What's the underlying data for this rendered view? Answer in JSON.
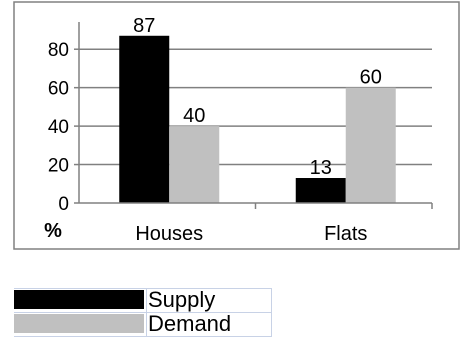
{
  "chart_data": {
    "type": "bar",
    "categories": [
      "Houses",
      "Flats"
    ],
    "series": [
      {
        "name": "Supply",
        "values": [
          87,
          13
        ],
        "color": "#000000"
      },
      {
        "name": "Demand",
        "values": [
          40,
          60
        ],
        "color": "#c0c0c0"
      }
    ],
    "ylabel": "%",
    "yticks": [
      0,
      20,
      40,
      60,
      80
    ],
    "ylim": [
      0,
      90
    ],
    "grid": true,
    "legend_position": "bottom-left"
  },
  "colors": {
    "gridline": "#808080",
    "frame": "#808080"
  }
}
